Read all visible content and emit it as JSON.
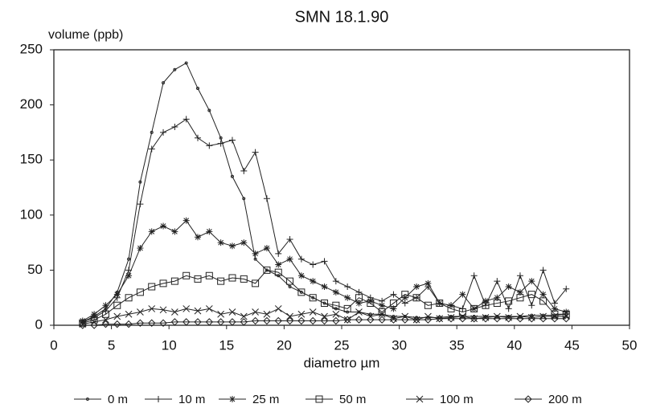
{
  "chart_data": {
    "type": "line",
    "title": "SMN 18.1.90",
    "y_label": "volume (ppb)",
    "x_label": "diametro µm",
    "x": [
      2.5,
      3.5,
      4.5,
      5.5,
      6.5,
      7.5,
      8.5,
      9.5,
      10.5,
      11.5,
      12.5,
      13.5,
      14.5,
      15.5,
      16.5,
      17.5,
      18.5,
      19.5,
      20.5,
      21.5,
      22.5,
      23.5,
      24.5,
      25.5,
      26.5,
      27.5,
      28.5,
      29.5,
      30.5,
      31.5,
      32.5,
      33.5,
      34.5,
      35.5,
      36.5,
      37.5,
      38.5,
      39.5,
      40.5,
      41.5,
      42.5,
      43.5,
      44.5
    ],
    "series": [
      {
        "name": "0 m",
        "color": "#222222",
        "marker": "dot",
        "values": [
          3,
          8,
          15,
          30,
          60,
          130,
          175,
          220,
          232,
          238,
          215,
          195,
          170,
          135,
          115,
          60,
          50,
          45,
          35,
          30,
          25,
          20,
          15,
          12,
          12,
          10,
          10,
          8,
          8,
          7,
          7,
          7,
          8,
          8,
          8,
          8,
          8,
          8,
          8,
          9,
          9,
          9,
          10
        ]
      },
      {
        "name": "10 m",
        "color": "#222222",
        "marker": "plus",
        "values": [
          3,
          7,
          13,
          25,
          50,
          110,
          160,
          175,
          180,
          187,
          170,
          163,
          165,
          168,
          140,
          157,
          115,
          65,
          78,
          60,
          55,
          58,
          40,
          35,
          30,
          25,
          22,
          28,
          20,
          25,
          35,
          20,
          18,
          15,
          45,
          18,
          40,
          15,
          45,
          18,
          50,
          20,
          33
        ]
      },
      {
        "name": "25 m",
        "color": "#222222",
        "marker": "star",
        "values": [
          4,
          10,
          18,
          28,
          45,
          70,
          85,
          90,
          85,
          95,
          80,
          85,
          75,
          72,
          75,
          65,
          70,
          55,
          60,
          45,
          40,
          35,
          30,
          25,
          20,
          22,
          18,
          15,
          25,
          35,
          38,
          20,
          18,
          28,
          15,
          22,
          25,
          35,
          30,
          40,
          28,
          15,
          12
        ]
      },
      {
        "name": "50 m",
        "color": "#222222",
        "marker": "square",
        "values": [
          2,
          5,
          10,
          18,
          25,
          30,
          35,
          38,
          40,
          45,
          42,
          45,
          40,
          43,
          42,
          38,
          50,
          48,
          40,
          30,
          25,
          20,
          18,
          15,
          25,
          20,
          12,
          20,
          28,
          25,
          18,
          20,
          15,
          12,
          15,
          18,
          20,
          22,
          25,
          28,
          22,
          10,
          10
        ]
      },
      {
        "name": "100 m",
        "color": "#222222",
        "marker": "x",
        "values": [
          1,
          3,
          5,
          8,
          10,
          12,
          15,
          14,
          12,
          15,
          13,
          15,
          10,
          12,
          8,
          12,
          10,
          15,
          8,
          10,
          12,
          8,
          10,
          5,
          12,
          8,
          10,
          6,
          8,
          5,
          8,
          6,
          7,
          8,
          6,
          7,
          8,
          7,
          8,
          7,
          8,
          8,
          8
        ]
      },
      {
        "name": "200 m",
        "color": "#222222",
        "marker": "diamond",
        "values": [
          0,
          0,
          1,
          1,
          1,
          2,
          2,
          2,
          3,
          3,
          3,
          3,
          3,
          3,
          3,
          4,
          4,
          4,
          4,
          4,
          4,
          4,
          4,
          5,
          5,
          5,
          5,
          5,
          5,
          5,
          5,
          6,
          6,
          6,
          6,
          6,
          6,
          6,
          6,
          6,
          6,
          6,
          6
        ]
      }
    ],
    "xlim": [
      0,
      50
    ],
    "xticks": [
      0,
      5,
      10,
      15,
      20,
      25,
      30,
      35,
      40,
      45,
      50
    ],
    "ylim": [
      0,
      250
    ],
    "yticks": [
      0,
      50,
      100,
      150,
      200,
      250
    ],
    "grid": false
  }
}
